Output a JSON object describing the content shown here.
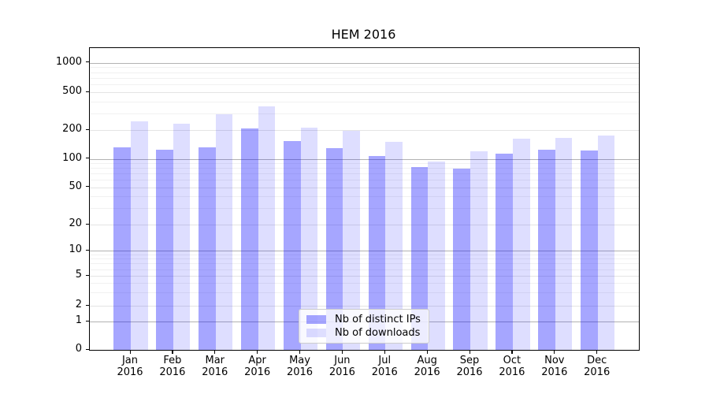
{
  "title": "HEM 2016",
  "chart_data": {
    "type": "bar",
    "title": "HEM 2016",
    "categories": [
      "Jan",
      "Feb",
      "Mar",
      "Apr",
      "May",
      "Jun",
      "Jul",
      "Aug",
      "Sep",
      "Oct",
      "Nov",
      "Dec"
    ],
    "category_year": "2016",
    "series": [
      {
        "name": "Nb of distinct IPs",
        "color": "rgba(0,0,255,0.35)",
        "values": [
          132,
          125,
          132,
          206,
          152,
          130,
          107,
          81,
          79,
          113,
          125,
          123
        ]
      },
      {
        "name": "Nb of downloads",
        "color": "rgba(0,0,255,0.13)",
        "values": [
          245,
          233,
          293,
          358,
          210,
          197,
          151,
          94,
          120,
          161,
          166,
          176
        ]
      }
    ],
    "xlabel": "",
    "ylabel": "",
    "yscale": "symlog",
    "y_ticks": [
      0,
      1,
      2,
      5,
      10,
      20,
      50,
      100,
      200,
      500,
      1000
    ],
    "ylim": [
      0,
      1400
    ],
    "grid": true,
    "legend_position": "lower center",
    "colors": {
      "major_grid": "#b2b2b2",
      "labeled_grid": "#e4e4e4",
      "minor_grid": "#f1f1f1",
      "spine": "#000000",
      "legend_border": "#cccccc"
    }
  }
}
